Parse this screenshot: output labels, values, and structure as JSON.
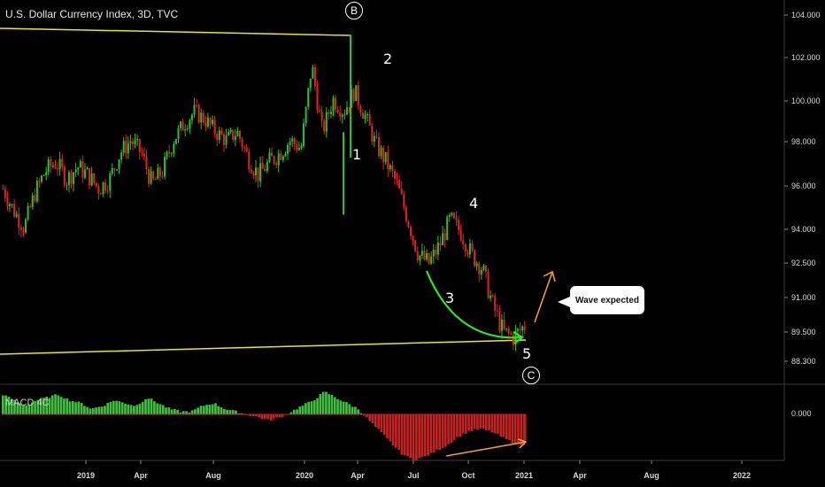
{
  "chart_data": {
    "type": "candlestick",
    "title": "U.S. Dollar Currency Index, 3D, TVC",
    "price_ticks": [
      "104.000",
      "102.000",
      "100.000",
      "98.000",
      "96.000",
      "94.000",
      "92.500",
      "91.000",
      "89.500",
      "88.300"
    ],
    "time_ticks": [
      "2019",
      "Apr",
      "Aug",
      "2020",
      "Apr",
      "Jul",
      "Oct",
      "2021",
      "Apr",
      "Aug",
      "2022"
    ],
    "series_price": [
      96.0,
      95.0,
      94.2,
      95.8,
      96.8,
      97.2,
      96.4,
      97.0,
      96.6,
      96.0,
      96.4,
      97.6,
      98.2,
      97.6,
      96.2,
      96.8,
      98.2,
      99.0,
      99.6,
      99.2,
      98.6,
      98.2,
      98.6,
      97.4,
      96.6,
      97.2,
      97.6,
      98.2,
      97.8,
      101.8,
      98.6,
      100.2,
      99.6,
      100.6,
      99.4,
      98.0,
      97.2,
      96.2,
      94.6,
      93.0,
      92.6,
      93.4,
      94.6,
      94.0,
      93.0,
      92.4,
      90.8,
      89.6,
      89.4,
      89.9
    ],
    "macd_hist": [
      0.7,
      0.5,
      0.3,
      0.5,
      0.6,
      0.7,
      0.5,
      0.4,
      0.2,
      0.3,
      0.5,
      0.4,
      0.3,
      0.6,
      0.4,
      0.2,
      0.1,
      0.1,
      0.3,
      0.4,
      0.2,
      0.1,
      0.0,
      -0.1,
      -0.2,
      -0.1,
      0.1,
      0.3,
      0.5,
      0.8,
      0.6,
      0.4,
      0.2,
      -0.2,
      -0.6,
      -1.0,
      -1.4,
      -1.6,
      -1.5,
      -1.3,
      -1.1,
      -0.8,
      -0.6,
      -0.5,
      -0.6,
      -0.8,
      -1.0,
      -1.1
    ],
    "macd_zero_label": "0.000",
    "macd_label": "MACD 4C",
    "annotations": {
      "wave_labels": [
        "1",
        "2",
        "3",
        "4",
        "5"
      ],
      "circled_labels": [
        "B",
        "C"
      ],
      "callout": "Wave expected"
    },
    "colors": {
      "up": "#26c22e",
      "down": "#e0241f",
      "trendline": "#e6e62e",
      "curve": "#2ee62e",
      "arrow": "#f5a623",
      "macd_pos": "#3fbf3f",
      "macd_neg": "#c22424"
    },
    "grid": false
  }
}
